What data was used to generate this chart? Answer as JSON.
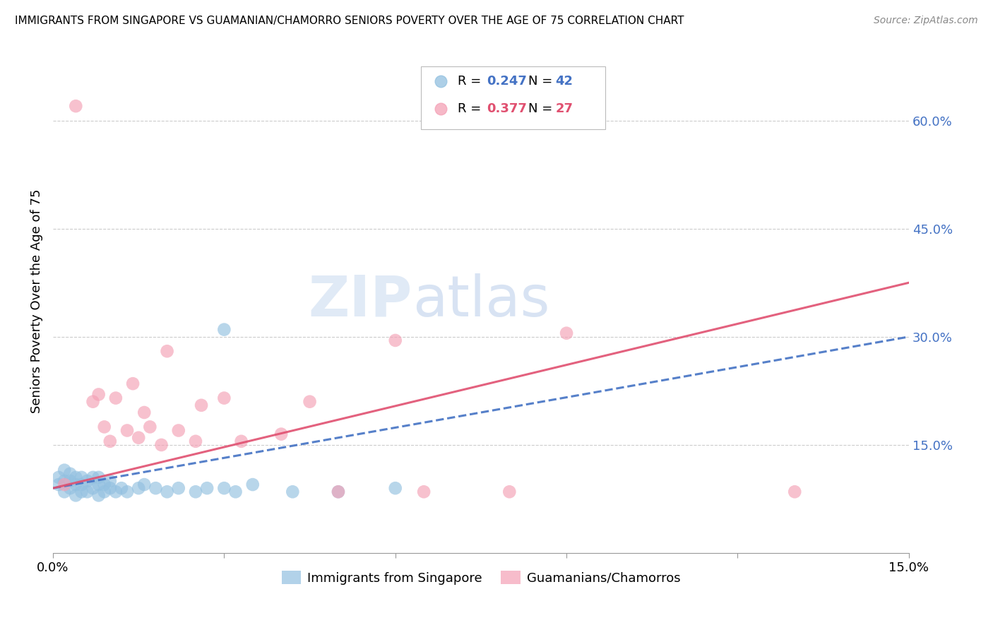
{
  "title": "IMMIGRANTS FROM SINGAPORE VS GUAMANIAN/CHAMORRO SENIORS POVERTY OVER THE AGE OF 75 CORRELATION CHART",
  "source": "Source: ZipAtlas.com",
  "ylabel": "Seniors Poverty Over the Age of 75",
  "xlim": [
    0.0,
    0.15
  ],
  "ylim": [
    0.0,
    0.7
  ],
  "ytick_positions": [
    0.15,
    0.3,
    0.45,
    0.6
  ],
  "ytick_labels": [
    "15.0%",
    "30.0%",
    "45.0%",
    "60.0%"
  ],
  "color_blue": "#92c0e0",
  "color_pink": "#f4a0b5",
  "color_blue_line": "#4472C4",
  "color_pink_line": "#E05070",
  "color_right_axis": "#4472C4",
  "watermark_zip": "ZIP",
  "watermark_atlas": "atlas",
  "singapore_x": [
    0.001,
    0.001,
    0.002,
    0.002,
    0.002,
    0.003,
    0.003,
    0.003,
    0.004,
    0.004,
    0.004,
    0.005,
    0.005,
    0.005,
    0.006,
    0.006,
    0.007,
    0.007,
    0.008,
    0.008,
    0.008,
    0.009,
    0.009,
    0.01,
    0.01,
    0.011,
    0.012,
    0.013,
    0.015,
    0.016,
    0.018,
    0.02,
    0.022,
    0.025,
    0.027,
    0.03,
    0.032,
    0.035,
    0.042,
    0.05,
    0.06,
    0.03
  ],
  "singapore_y": [
    0.095,
    0.105,
    0.085,
    0.1,
    0.115,
    0.09,
    0.1,
    0.11,
    0.08,
    0.095,
    0.105,
    0.085,
    0.095,
    0.105,
    0.085,
    0.1,
    0.09,
    0.105,
    0.08,
    0.095,
    0.105,
    0.085,
    0.095,
    0.09,
    0.1,
    0.085,
    0.09,
    0.085,
    0.09,
    0.095,
    0.09,
    0.085,
    0.09,
    0.085,
    0.09,
    0.09,
    0.085,
    0.095,
    0.085,
    0.085,
    0.09,
    0.31
  ],
  "guam_x": [
    0.002,
    0.004,
    0.007,
    0.008,
    0.009,
    0.01,
    0.011,
    0.013,
    0.014,
    0.015,
    0.016,
    0.017,
    0.019,
    0.02,
    0.022,
    0.025,
    0.026,
    0.03,
    0.033,
    0.04,
    0.045,
    0.05,
    0.06,
    0.065,
    0.08,
    0.09,
    0.13
  ],
  "guam_y": [
    0.095,
    0.62,
    0.21,
    0.22,
    0.175,
    0.155,
    0.215,
    0.17,
    0.235,
    0.16,
    0.195,
    0.175,
    0.15,
    0.28,
    0.17,
    0.155,
    0.205,
    0.215,
    0.155,
    0.165,
    0.21,
    0.085,
    0.295,
    0.085,
    0.085,
    0.305,
    0.085
  ],
  "sg_line_x0": 0.0,
  "sg_line_y0": 0.09,
  "sg_line_x1": 0.15,
  "sg_line_y1": 0.3,
  "gm_line_x0": 0.0,
  "gm_line_y0": 0.09,
  "gm_line_x1": 0.15,
  "gm_line_y1": 0.375
}
